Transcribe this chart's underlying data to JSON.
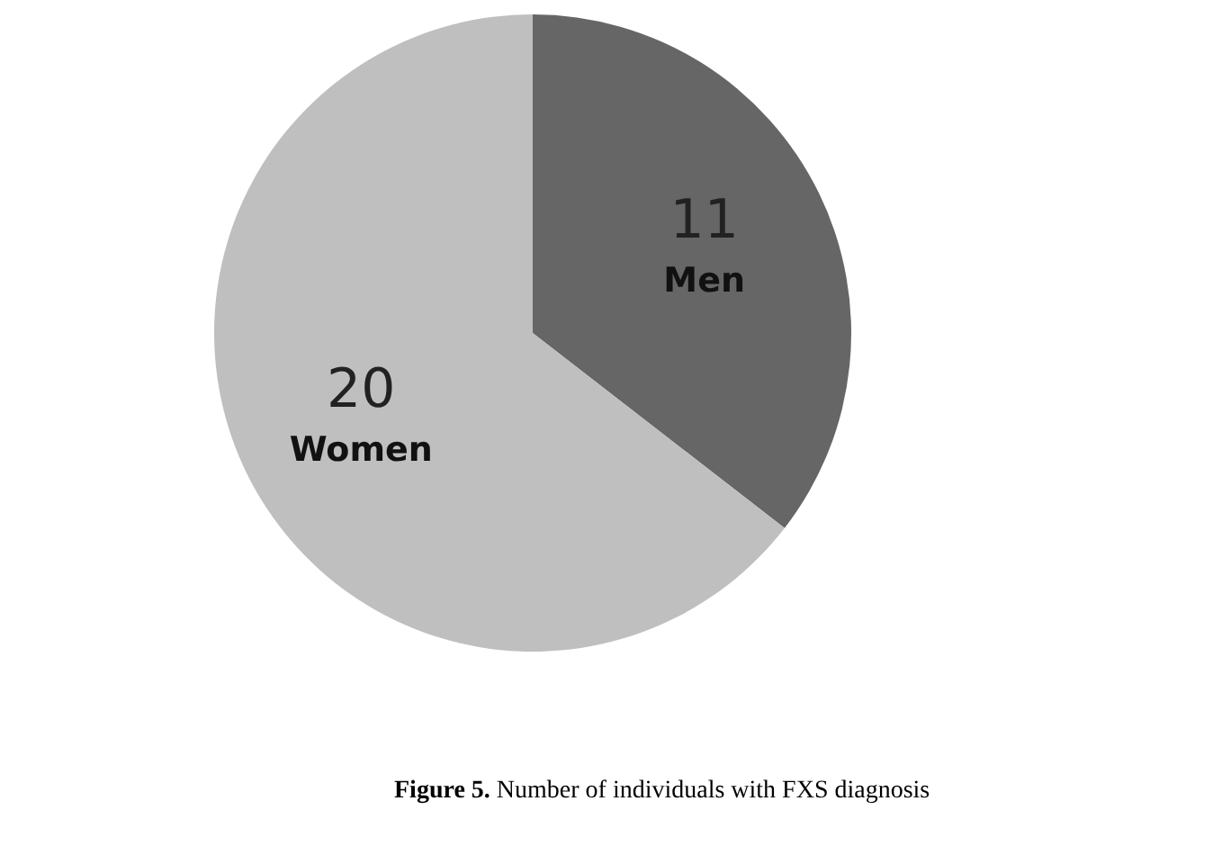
{
  "chart_data": {
    "type": "pie",
    "categories": [
      "Men",
      "Women"
    ],
    "values": [
      11,
      20
    ],
    "colors": [
      "#666666",
      "#bfbfbf"
    ],
    "data_labels": true,
    "annotations": [
      "Figure 5. Number of individuals with FXS diagnosis"
    ]
  }
}
